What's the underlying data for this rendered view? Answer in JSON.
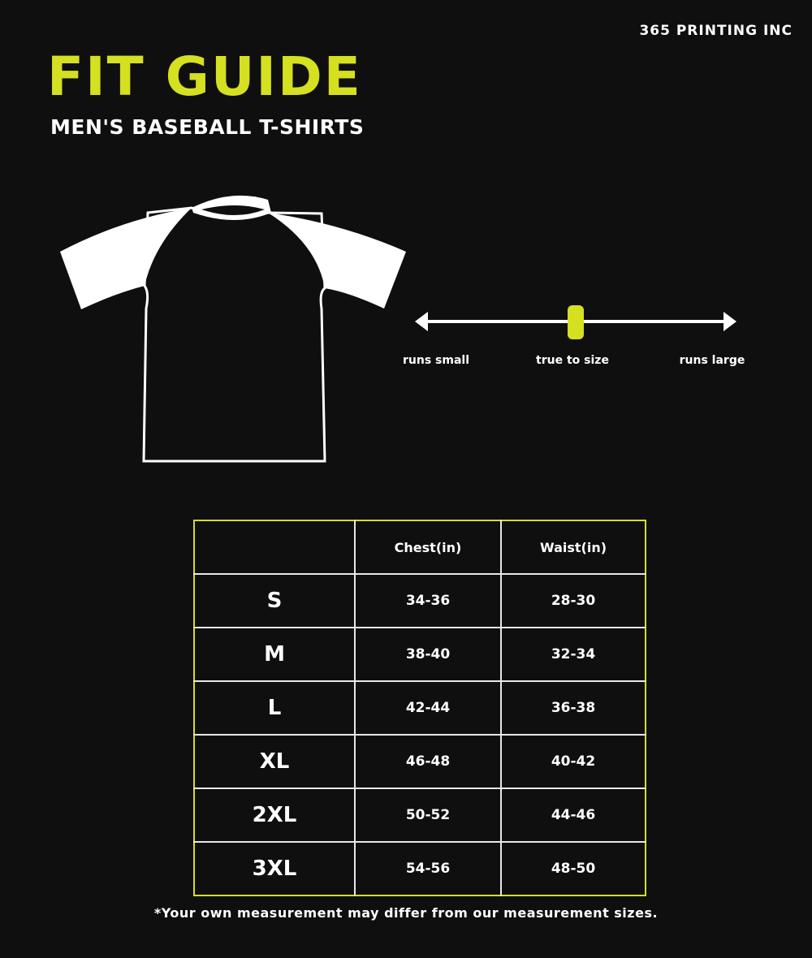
{
  "brand": "365 PRINTING INC",
  "title": "FIT GUIDE",
  "subtitle": "MEN'S BASEBALL T-SHIRTS",
  "colors": {
    "accent": "#d4e020",
    "background": "#0f0f0f",
    "text": "#ffffff"
  },
  "fit_scale": {
    "left_label": "runs small",
    "center_label": "true to size",
    "right_label": "runs large",
    "indicator_position": 0.5
  },
  "size_table": {
    "headers": [
      "",
      "Chest(in)",
      "Waist(in)"
    ],
    "rows": [
      {
        "size": "S",
        "chest": "34-36",
        "waist": "28-30"
      },
      {
        "size": "M",
        "chest": "38-40",
        "waist": "32-34"
      },
      {
        "size": "L",
        "chest": "42-44",
        "waist": "36-38"
      },
      {
        "size": "XL",
        "chest": "46-48",
        "waist": "40-42"
      },
      {
        "size": "2XL",
        "chest": "50-52",
        "waist": "44-46"
      },
      {
        "size": "3XL",
        "chest": "54-56",
        "waist": "48-50"
      }
    ]
  },
  "footnote": "*Your own measurement may differ from our measurement sizes."
}
